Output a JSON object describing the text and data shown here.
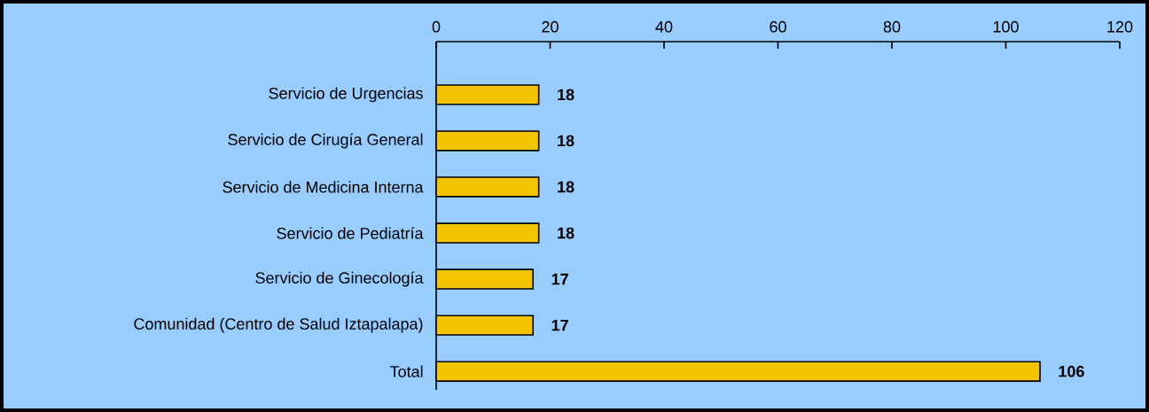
{
  "chart_data": {
    "type": "bar",
    "orientation": "horizontal",
    "categories": [
      "Servicio de Urgencias",
      "Servicio de Cirugía General",
      "Servicio de Medicina Interna",
      "Servicio de Pediatría",
      "Servicio de Ginecología",
      "Comunidad (Centro de Salud Iztapalapa)",
      "Total"
    ],
    "values": [
      18,
      18,
      18,
      18,
      17,
      17,
      106
    ],
    "color": "#f5c400",
    "xlim": [
      0,
      120
    ],
    "xticks": [
      0,
      20,
      40,
      60,
      80,
      100,
      120
    ],
    "data_labels": true
  }
}
